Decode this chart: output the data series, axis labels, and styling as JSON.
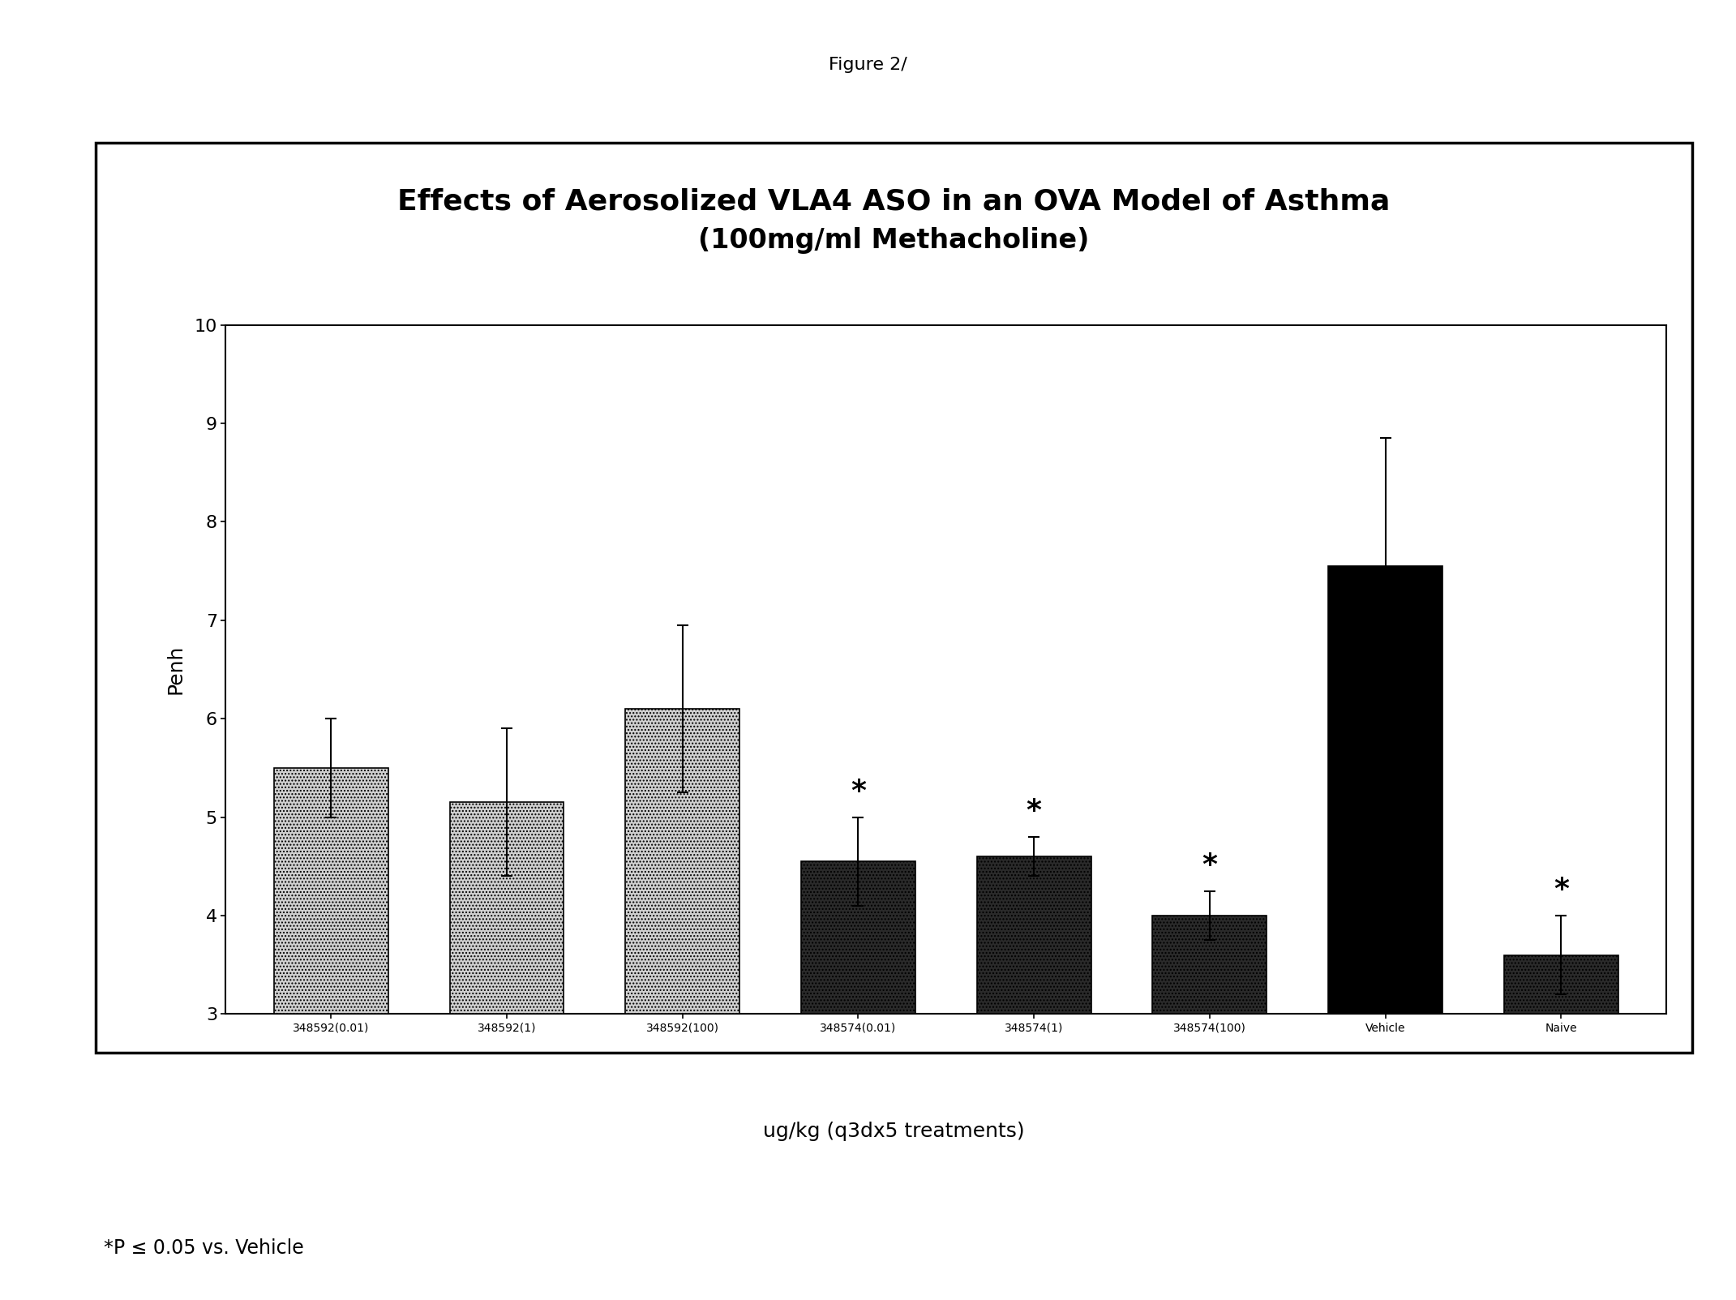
{
  "title_line1": "Effects of Aerosolized VLA4 ASO in an OVA Model of Asthma",
  "title_line2": "(100mg/ml Methacholine)",
  "figure_label": "Figure 2/",
  "xlabel": "ug/kg (q3dx5 treatments)",
  "ylabel": "Penh",
  "footnote": "*P ≤ 0.05 vs. Vehicle",
  "categories": [
    "348592(0.01)",
    "348592(1)",
    "348592(100)",
    "348574(0.01)",
    "348574(1)",
    "348574(100)",
    "Vehicle",
    "Naive"
  ],
  "values": [
    5.5,
    5.15,
    6.1,
    4.55,
    4.6,
    4.0,
    7.55,
    3.6
  ],
  "errors": [
    0.5,
    0.75,
    0.85,
    0.45,
    0.2,
    0.25,
    1.3,
    0.4
  ],
  "bar_colors": [
    "#d0d0d0",
    "#d0d0d0",
    "#d0d0d0",
    "#2a2a2a",
    "#2a2a2a",
    "#2a2a2a",
    "#000000",
    "#2a2a2a"
  ],
  "bar_hatches": [
    "....",
    "....",
    "....",
    "....",
    "....",
    "....",
    "",
    "...."
  ],
  "significant": [
    false,
    false,
    false,
    true,
    true,
    true,
    false,
    true
  ],
  "ylim": [
    3,
    10
  ],
  "yticks": [
    3,
    4,
    5,
    6,
    7,
    8,
    9,
    10
  ],
  "title_fontsize": 26,
  "axis_label_fontsize": 18,
  "tick_fontsize": 16,
  "footnote_fontsize": 17,
  "figure_label_fontsize": 16
}
